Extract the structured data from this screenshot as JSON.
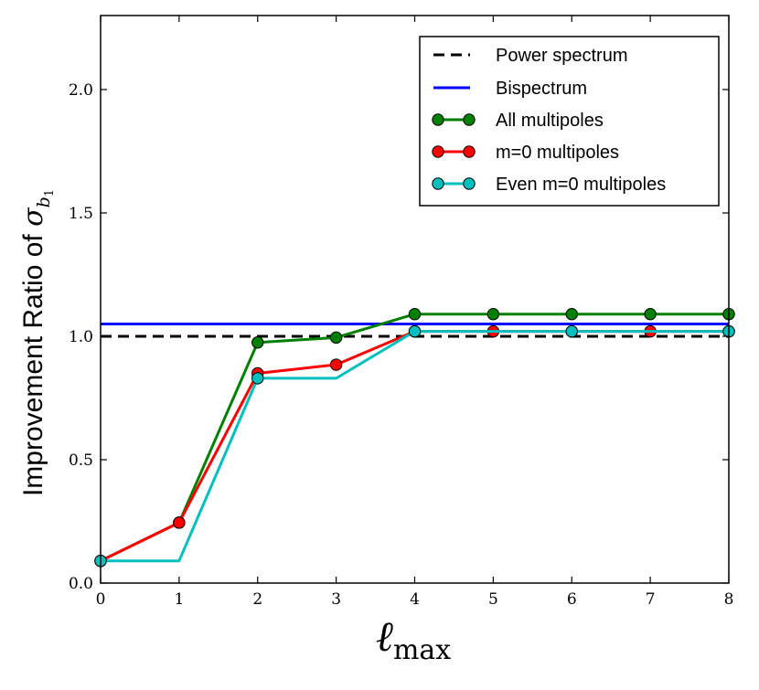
{
  "chart_data": {
    "type": "line",
    "title": "",
    "xlabel": {
      "main": "ℓ",
      "sub": "max"
    },
    "ylabel": {
      "text": "Improvement Ratio of ",
      "symbol": "σ",
      "sub": "b",
      "subsub": "1"
    },
    "xlim": [
      0,
      8
    ],
    "ylim": [
      0.0,
      2.3
    ],
    "xticks": [
      "0",
      "1",
      "2",
      "3",
      "4",
      "5",
      "6",
      "7",
      "8"
    ],
    "yticks": [
      "0.0",
      "0.5",
      "1.0",
      "1.5",
      "2.0"
    ],
    "grid": false,
    "legend_position": "top-right",
    "x": [
      0,
      1,
      2,
      3,
      4,
      5,
      6,
      7,
      8
    ],
    "series": [
      {
        "name": "Power spectrum",
        "style": "dashed",
        "markers": false,
        "color": "#000000",
        "x": [
          0,
          8
        ],
        "values": [
          1.0,
          1.0
        ]
      },
      {
        "name": "Bispectrum",
        "style": "solid",
        "markers": false,
        "color": "#0000ff",
        "x": [
          0,
          8
        ],
        "values": [
          1.05,
          1.05
        ]
      },
      {
        "name": "All multipoles",
        "style": "solid",
        "markers": true,
        "color": "#008000",
        "x": [
          0,
          1,
          2,
          3,
          4,
          5,
          6,
          7,
          8
        ],
        "values": [
          0.09,
          0.245,
          0.975,
          0.995,
          1.09,
          1.09,
          1.09,
          1.09,
          1.09
        ]
      },
      {
        "name": "m=0 multipoles",
        "style": "solid",
        "markers": true,
        "color": "#ff0000",
        "x": [
          0,
          1,
          2,
          3,
          4,
          5,
          6,
          7,
          8
        ],
        "values": [
          0.09,
          0.245,
          0.85,
          0.885,
          1.02,
          1.02,
          1.02,
          1.02,
          1.02
        ]
      },
      {
        "name": "Even m=0 multipoles",
        "style": "solid",
        "markers": true,
        "color": "#00bfbf",
        "x": [
          0,
          1,
          2,
          3,
          4,
          5,
          6,
          7,
          8
        ],
        "values": [
          0.09,
          0.09,
          0.83,
          0.83,
          1.02,
          1.02,
          1.02,
          1.02,
          1.02
        ],
        "marker_x": [
          0,
          2,
          4,
          6,
          8
        ]
      }
    ]
  }
}
